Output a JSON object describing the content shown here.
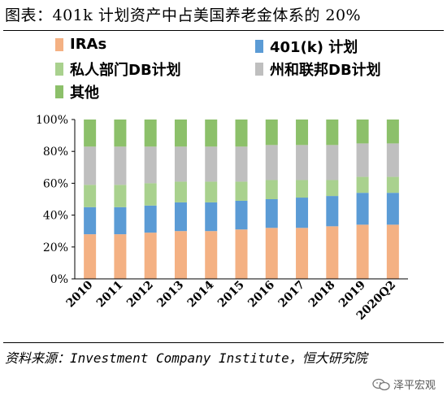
{
  "title": "图表：401k 计划资产中占美国养老金体系的 20%",
  "source": "资料来源：Investment Company Institute，恒大研究院",
  "watermark": "泽平宏观",
  "chart_data": {
    "type": "bar",
    "stacked": true,
    "title": "",
    "xlabel": "",
    "ylabel": "",
    "ylim": [
      0,
      100
    ],
    "yticks": [
      "0%",
      "20%",
      "40%",
      "60%",
      "80%",
      "100%"
    ],
    "categories": [
      "2010",
      "2011",
      "2012",
      "2013",
      "2014",
      "2015",
      "2016",
      "2017",
      "2018",
      "2019",
      "2020Q2"
    ],
    "legend_position": "top",
    "series": [
      {
        "name": "IRAs",
        "color": "#F4B183",
        "values": [
          28,
          28,
          29,
          30,
          30,
          31,
          32,
          32,
          33,
          34,
          34
        ]
      },
      {
        "name": "401(k) 计划",
        "color": "#5B9BD5",
        "values": [
          17,
          17,
          17,
          18,
          18,
          18,
          18,
          19,
          19,
          20,
          20
        ]
      },
      {
        "name": "私人部门DB计划",
        "color": "#A9D18E",
        "values": [
          14,
          14,
          14,
          13,
          13,
          12,
          12,
          11,
          10,
          10,
          10
        ]
      },
      {
        "name": "州和联邦DB计划",
        "color": "#BFBFBF",
        "values": [
          24,
          24,
          23,
          22,
          22,
          22,
          22,
          22,
          22,
          21,
          21
        ]
      },
      {
        "name": "其他",
        "color": "#8CC06A",
        "values": [
          17,
          17,
          17,
          17,
          17,
          17,
          16,
          16,
          16,
          15,
          15
        ]
      }
    ]
  }
}
